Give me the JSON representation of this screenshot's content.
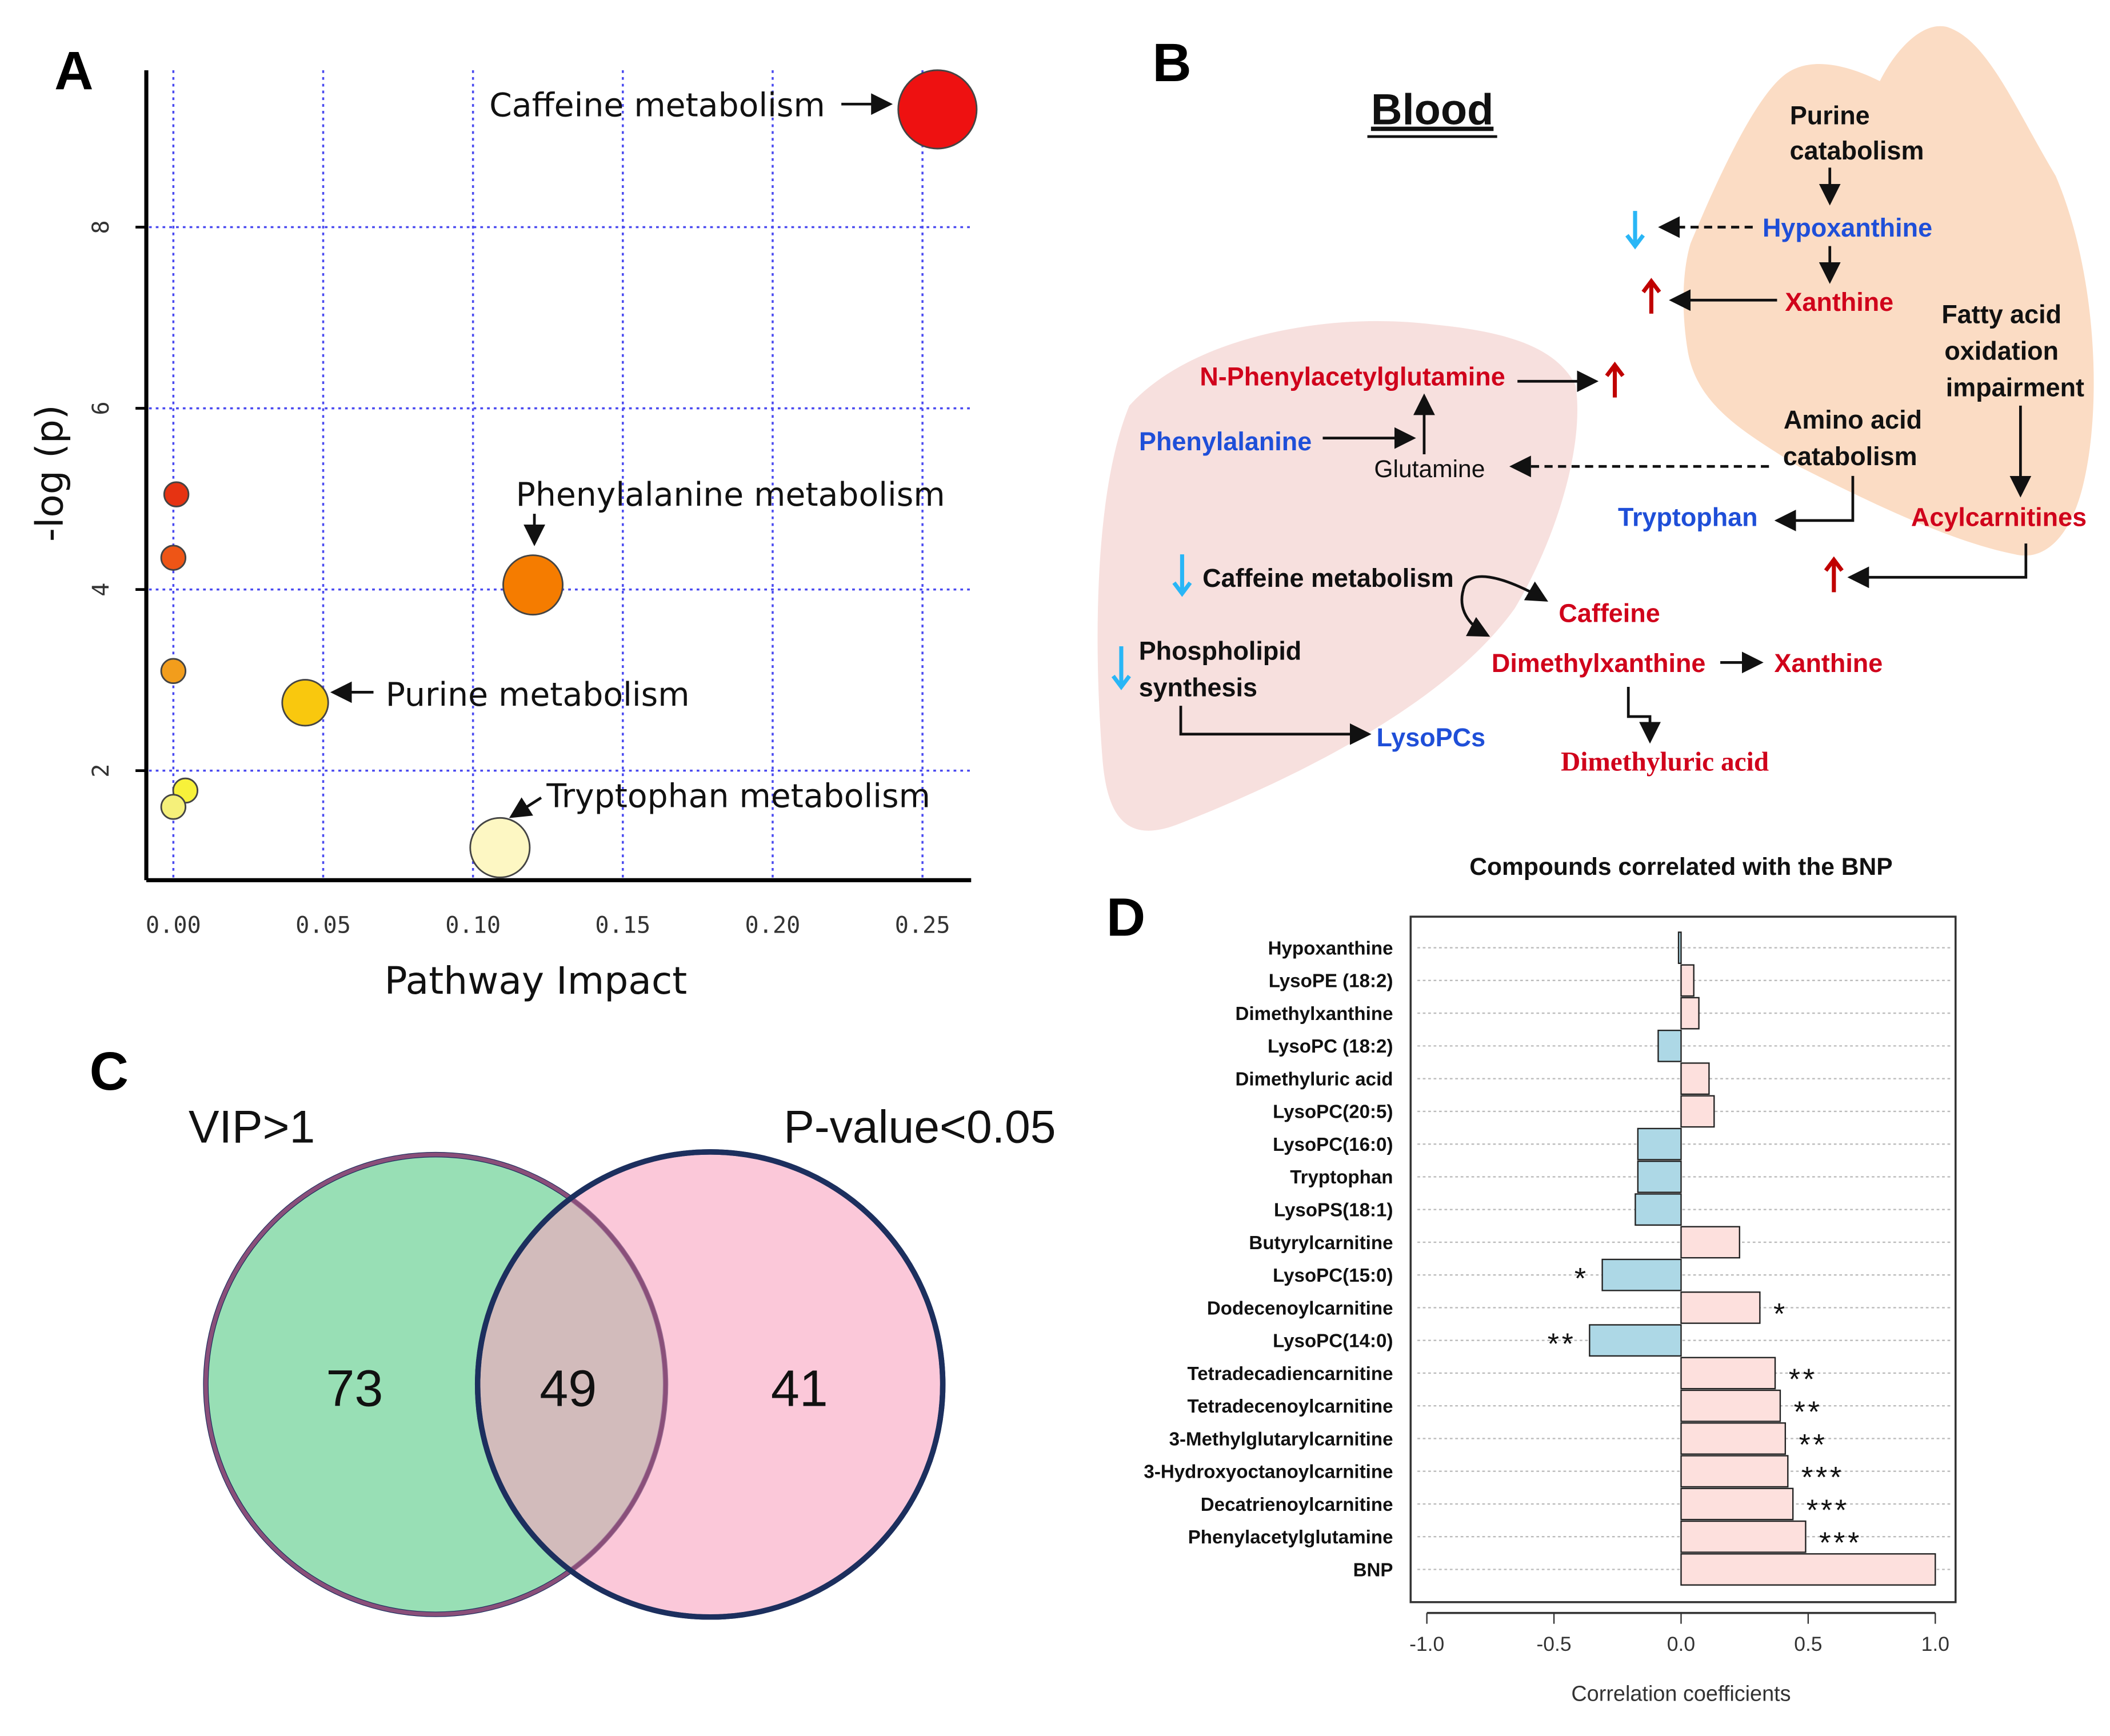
{
  "panels": {
    "a": "A",
    "b": "B",
    "c": "C",
    "d": "D"
  },
  "chart_data": [
    {
      "type": "scatter",
      "xlabel": "Pathway Impact",
      "ylabel": "-log (p)",
      "xlim": [
        -0.01,
        0.265
      ],
      "ylim": [
        0.8,
        9.7
      ],
      "xticks": [
        "0.00",
        "0.05",
        "0.10",
        "0.15",
        "0.20",
        "0.25"
      ],
      "yticks": [
        "2",
        "4",
        "6",
        "8"
      ],
      "grid": true,
      "points": [
        {
          "x": 0.255,
          "y": 9.3,
          "color": "#ee1111",
          "label": "Caffeine metabolism",
          "size": "large"
        },
        {
          "x": 0.12,
          "y": 4.05,
          "color": "#f57c00",
          "label": "Phenylalanine metabolism",
          "size": "medium"
        },
        {
          "x": 0.044,
          "y": 2.75,
          "color": "#f9c80e",
          "label": "Purine metabolism",
          "size": "small-medium"
        },
        {
          "x": 0.109,
          "y": 1.15,
          "color": "#fdf7c3",
          "label": "Tryptophan metabolism",
          "size": "medium"
        },
        {
          "x": 0.001,
          "y": 5.05,
          "color": "#e63312",
          "label": "",
          "size": "small"
        },
        {
          "x": 0.0,
          "y": 4.35,
          "color": "#ee5516",
          "label": "",
          "size": "small"
        },
        {
          "x": 0.0,
          "y": 3.1,
          "color": "#f29d1c",
          "label": "",
          "size": "small"
        },
        {
          "x": 0.004,
          "y": 1.78,
          "color": "#f7f13a",
          "label": "",
          "size": "small"
        },
        {
          "x": 0.0,
          "y": 1.6,
          "color": "#f5f07a",
          "label": "",
          "size": "small"
        }
      ]
    },
    {
      "type": "bar",
      "orientation": "horizontal",
      "title": "Compounds correlated with the BNP",
      "xlabel": "Correlation coefficients",
      "xlim": [
        -1.05,
        1.08
      ],
      "xticks": [
        "-1.0",
        "-0.5",
        "0.0",
        "0.5",
        "1.0"
      ],
      "positive_color": "#fde0dd",
      "negative_color": "#add8e6",
      "categories": [
        "Hypoxanthine",
        "LysoPE (18:2)",
        "Dimethylxanthine",
        "LysoPC (18:2)",
        "Dimethyluric acid",
        "LysoPC(20:5)",
        "LysoPC(16:0)",
        "Tryptophan",
        "LysoPS(18:1)",
        "Butyrylcarnitine",
        "LysoPC(15:0)",
        "Dodecenoylcarnitine",
        "LysoPC(14:0)",
        "Tetradecadiencarnitine",
        "Tetradecenoylcarnitine",
        "3-Methylglutarylcarnitine",
        "3-Hydroxyoctanoylcarnitine",
        "Decatrienoylcarnitine",
        "Phenylacetylglutamine",
        "BNP"
      ],
      "values": [
        -0.01,
        0.05,
        0.07,
        -0.09,
        0.11,
        0.13,
        -0.17,
        -0.17,
        -0.18,
        0.23,
        -0.31,
        0.31,
        -0.36,
        0.37,
        0.39,
        0.41,
        0.42,
        0.44,
        0.49,
        1.0
      ],
      "significance": [
        "",
        "",
        "",
        "",
        "",
        "",
        "",
        "",
        "",
        "",
        "*",
        "*",
        "**",
        "**",
        "**",
        "**",
        "***",
        "***",
        "***",
        ""
      ]
    }
  ],
  "venn": {
    "left_label": "VIP>1",
    "right_label": "P-value<0.05",
    "left_only": "73",
    "overlap": "49",
    "right_only": "41",
    "left_color": "#98dfb5",
    "right_color": "#f8a4c0"
  },
  "pathway": {
    "title": "Blood",
    "purine1": "Purine",
    "purine2": "catabolism",
    "hypoxanthine": "Hypoxanthine",
    "xanthine_heart": "Xanthine",
    "fatty1": "Fatty acid",
    "fatty2": "oxidation",
    "fatty3": "impairment",
    "npag": "N-Phenylacetylglutamine",
    "phenylalanine": "Phenylalanine",
    "glutamine": "Glutamine",
    "amino1": "Amino acid",
    "amino2": "catabolism",
    "tryptophan": "Tryptophan",
    "acylcarnitines": "Acylcarnitines",
    "caffeine_met": "Caffeine metabolism",
    "caffeine": "Caffeine",
    "phospho1": "Phospholipid",
    "phospho2": "synthesis",
    "dimethylxanthine": "Dimethylxanthine",
    "xanthine_liver": "Xanthine",
    "lysopcs": "LysoPCs",
    "dimethyluric": "Dimethyluric acid"
  }
}
